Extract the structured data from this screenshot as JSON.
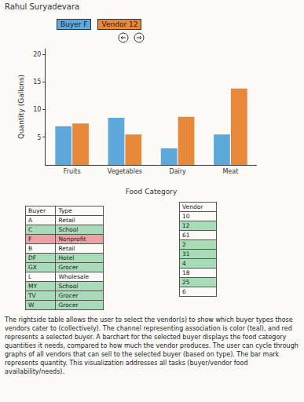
{
  "header": {
    "author": "Rahul Suryadevara"
  },
  "chart_data": {
    "type": "bar",
    "x_label": "Food Category",
    "y_label": "Quantity (Gallons)",
    "categories": [
      "Fruits",
      "Vegetables",
      "Dairy",
      "Meat"
    ],
    "series": [
      {
        "name": "Buyer F",
        "color": "#5da9dc",
        "values": [
          7,
          8.5,
          3,
          5.5
        ]
      },
      {
        "name": "Vendor 12",
        "color": "#e8883a",
        "values": [
          7.5,
          5.5,
          8.7,
          13.8
        ]
      }
    ],
    "ylim": [
      0,
      21
    ],
    "yticks": [
      5,
      10,
      15,
      20
    ],
    "grid": false
  },
  "buyer_table": {
    "columns": [
      "Buyer",
      "Type"
    ],
    "rows": [
      {
        "cells": [
          "A",
          "Retail"
        ]
      },
      {
        "cells": [
          "C",
          "School"
        ],
        "color": "#a8dcb8"
      },
      {
        "cells": [
          "F",
          "Nonprofit"
        ],
        "color": "#eaa2a2"
      },
      {
        "cells": [
          "B",
          "Retail"
        ]
      },
      {
        "cells": [
          "DF",
          "Hotel"
        ],
        "color": "#a8dcb8"
      },
      {
        "cells": [
          "GX",
          "Grocer"
        ],
        "color": "#a8dcb8"
      },
      {
        "cells": [
          "L",
          "Wholesale"
        ]
      },
      {
        "cells": [
          "MY",
          "School"
        ],
        "color": "#a8dcb8"
      },
      {
        "cells": [
          "TV",
          "Grocer"
        ],
        "color": "#a8dcb8"
      },
      {
        "cells": [
          "W",
          "Grocer"
        ],
        "color": "#a8dcb8"
      }
    ]
  },
  "vendor_table": {
    "columns": [
      "Vendor"
    ],
    "rows": [
      {
        "cells": [
          "10"
        ]
      },
      {
        "cells": [
          "12"
        ],
        "color": "#a8dcb8"
      },
      {
        "cells": [
          "61"
        ]
      },
      {
        "cells": [
          "2"
        ],
        "color": "#a8dcb8"
      },
      {
        "cells": [
          "31"
        ],
        "color": "#a8dcb8"
      },
      {
        "cells": [
          "4"
        ],
        "color": "#a8dcb8"
      },
      {
        "cells": [
          "18"
        ]
      },
      {
        "cells": [
          "25"
        ],
        "color": "#a8dcb8"
      },
      {
        "cells": [
          "6"
        ]
      }
    ]
  },
  "caption": "The rightside table allows the user to select the vendor(s) to show which buyer types those vendors cater to (collectively). The channel representing association is color (teal), and red represents a selected buyer. A barchart for the selected buyer displays the food category quantities it needs, compared to how much the vendor produces. The user can cycle through graphs of all vendors that can sell to the selected buyer (based on type). The bar mark represents quantity. This visualization addresses all tasks (buyer/vendor food availability/needs)."
}
